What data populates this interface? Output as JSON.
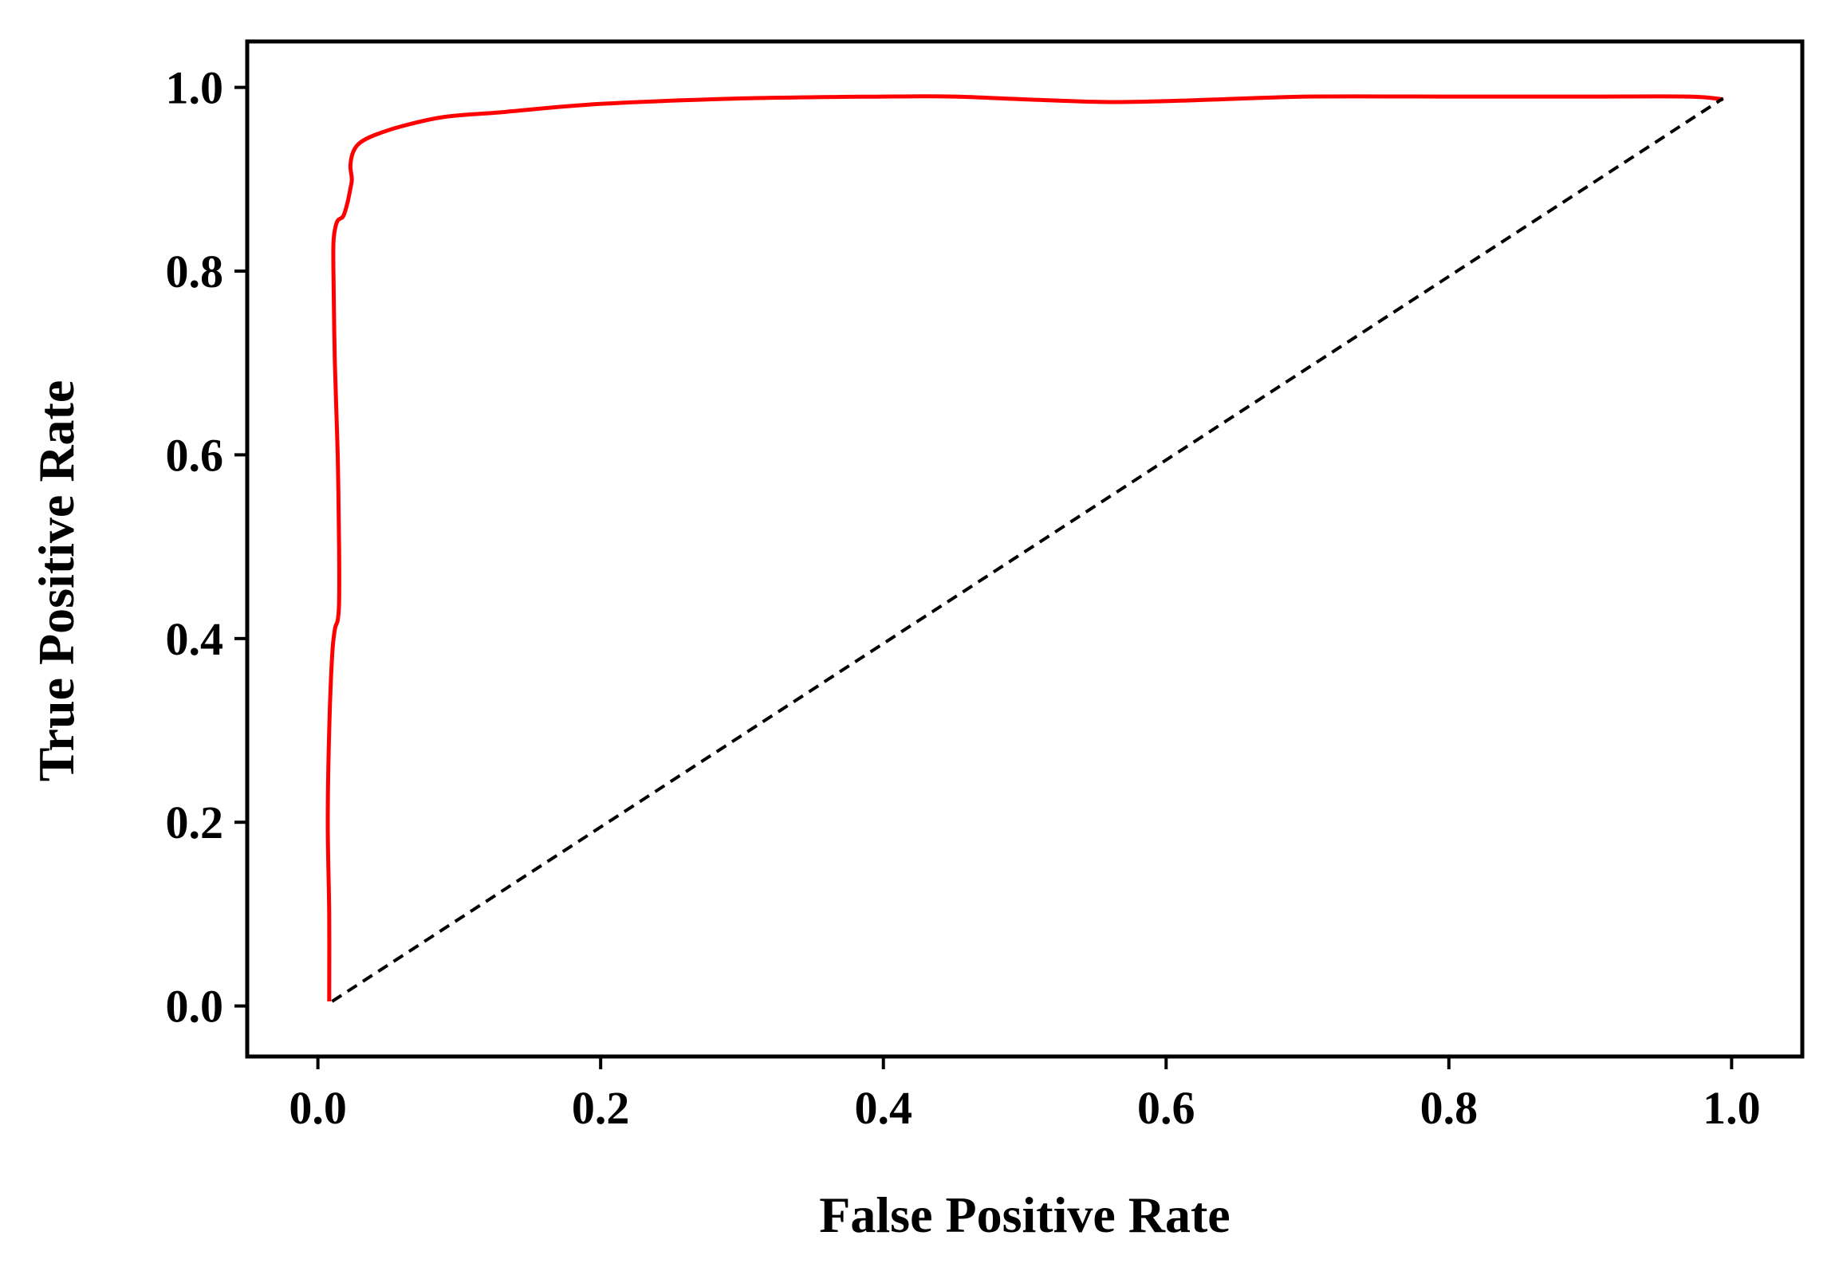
{
  "chart_data": {
    "type": "line",
    "title": "",
    "xlabel": "False Positive Rate",
    "ylabel": "True Positive Rate",
    "xlim": [
      -0.05,
      1.05
    ],
    "ylim": [
      -0.055,
      1.05
    ],
    "xticks": [
      0.0,
      0.2,
      0.4,
      0.6,
      0.8,
      1.0
    ],
    "yticks": [
      0.0,
      0.2,
      0.4,
      0.6,
      0.8,
      1.0
    ],
    "xtick_labels": [
      "0.0",
      "0.2",
      "0.4",
      "0.6",
      "0.8",
      "1.0"
    ],
    "ytick_labels": [
      "0.0",
      "0.2",
      "0.4",
      "0.6",
      "0.8",
      "1.0"
    ],
    "grid": false,
    "legend": "none",
    "series": [
      {
        "color": "#ff0000",
        "line_style": "solid",
        "x": [
          0.008,
          0.008,
          0.007,
          0.008,
          0.01,
          0.012,
          0.014,
          0.015,
          0.015,
          0.014,
          0.012,
          0.011,
          0.011,
          0.012,
          0.014,
          0.018,
          0.021,
          0.023,
          0.024,
          0.023,
          0.025,
          0.03,
          0.04,
          0.06,
          0.09,
          0.13,
          0.2,
          0.3,
          0.4,
          0.45,
          0.5,
          0.56,
          0.62,
          0.7,
          0.8,
          0.9,
          0.97,
          0.994
        ],
        "y": [
          0.005,
          0.1,
          0.2,
          0.3,
          0.38,
          0.41,
          0.42,
          0.44,
          0.5,
          0.6,
          0.7,
          0.8,
          0.83,
          0.845,
          0.855,
          0.86,
          0.875,
          0.89,
          0.9,
          0.915,
          0.93,
          0.94,
          0.948,
          0.958,
          0.968,
          0.973,
          0.982,
          0.988,
          0.99,
          0.99,
          0.987,
          0.984,
          0.986,
          0.99,
          0.99,
          0.99,
          0.99,
          0.987
        ]
      },
      {
        "color": "#000000",
        "line_style": "dashed",
        "x": [
          0.01,
          0.994
        ],
        "y": [
          0.005,
          0.988
        ]
      }
    ]
  }
}
